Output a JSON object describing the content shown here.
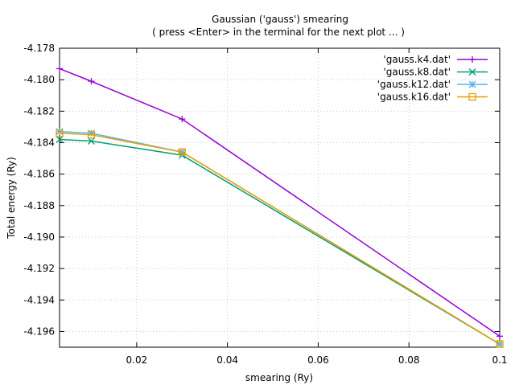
{
  "chart_data": {
    "type": "line",
    "title": "Gaussian ('gauss') smearing",
    "subtitle": "( press <Enter> in the terminal for the next plot ... )",
    "xlabel": "smearing (Ry)",
    "ylabel": "Total energy (Ry)",
    "xlim": [
      0.003,
      0.1
    ],
    "ylim": [
      -4.197,
      -4.178
    ],
    "x_ticks": [
      "0.02",
      "0.04",
      "0.06",
      "0.08",
      "0.1"
    ],
    "x_tick_values": [
      0.02,
      0.04,
      0.06,
      0.08,
      0.1
    ],
    "y_ticks": [
      "-4.178",
      "-4.180",
      "-4.182",
      "-4.184",
      "-4.186",
      "-4.188",
      "-4.190",
      "-4.192",
      "-4.194",
      "-4.196"
    ],
    "y_tick_values": [
      -4.178,
      -4.18,
      -4.182,
      -4.184,
      -4.186,
      -4.188,
      -4.19,
      -4.192,
      -4.194,
      -4.196
    ],
    "grid": true,
    "legend_position": "top-right",
    "series": [
      {
        "name": "'gauss.k4.dat'",
        "color": "#9400d3",
        "marker": "plus",
        "x": [
          0.003,
          0.01,
          0.03,
          0.1
        ],
        "y": [
          -4.1793,
          -4.1801,
          -4.1825,
          -4.1963
        ]
      },
      {
        "name": "'gauss.k8.dat'",
        "color": "#009e73",
        "marker": "cross",
        "x": [
          0.003,
          0.01,
          0.03,
          0.1
        ],
        "y": [
          -4.1838,
          -4.1839,
          -4.1848,
          -4.1968
        ]
      },
      {
        "name": "'gauss.k12.dat'",
        "color": "#56b4e9",
        "marker": "star",
        "x": [
          0.003,
          0.01,
          0.03,
          0.1
        ],
        "y": [
          -4.1833,
          -4.1834,
          -4.1846,
          -4.1968
        ]
      },
      {
        "name": "'gauss.k16.dat'",
        "color": "#e69f00",
        "marker": "square",
        "x": [
          0.003,
          0.01,
          0.03,
          0.1
        ],
        "y": [
          -4.1834,
          -4.1835,
          -4.1846,
          -4.1968
        ]
      }
    ]
  }
}
